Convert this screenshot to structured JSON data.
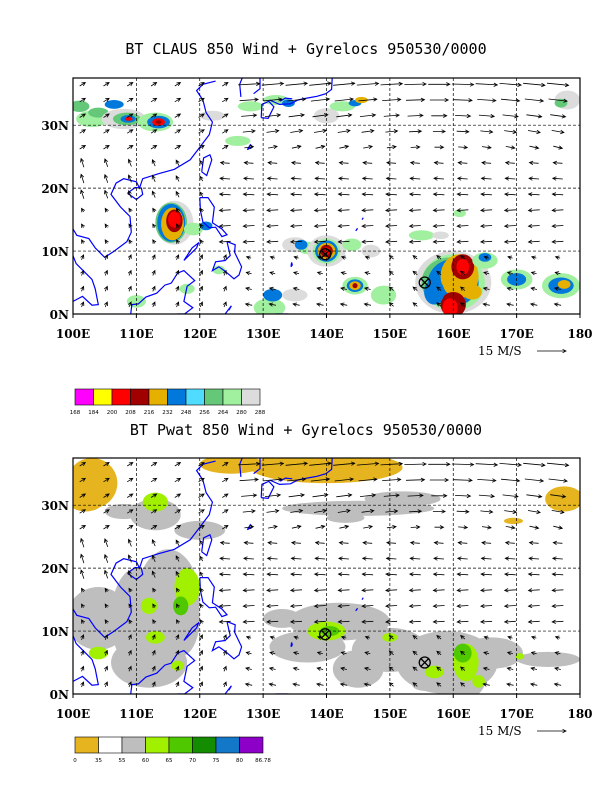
{
  "panels": [
    {
      "id": "claus",
      "title": "BT CLAUS 850 Wind + Gyrelocs 950530/0000",
      "lon_ticks": [
        "100E",
        "110E",
        "120E",
        "130E",
        "140E",
        "150E",
        "160E",
        "170E",
        "180"
      ],
      "lat_ticks": [
        "0N",
        "10N",
        "20N",
        "30N"
      ],
      "ref_vector_label": "15 M/S",
      "colorbar": {
        "colors": [
          "#ff00ff",
          "#ffff00",
          "#ff0000",
          "#a00000",
          "#e6b000",
          "#0078dc",
          "#50dcff",
          "#64c878",
          "#a0f0a0",
          "#dcdcdc"
        ],
        "labels": [
          "168",
          "184",
          "200",
          "208",
          "216",
          "232",
          "248",
          "256",
          "264",
          "280",
          "288"
        ]
      },
      "gyres": [
        {
          "lon": 139.8,
          "lat": 9.5
        },
        {
          "lon": 155.5,
          "lat": 5.0
        }
      ]
    },
    {
      "id": "pwat",
      "title": "BT Pwat 850 Wind + Gyrelocs 950530/0000",
      "lon_ticks": [
        "100E",
        "110E",
        "120E",
        "130E",
        "140E",
        "150E",
        "160E",
        "170E",
        "180"
      ],
      "lat_ticks": [
        "0N",
        "10N",
        "20N",
        "30N"
      ],
      "ref_vector_label": "15 M/S",
      "colorbar": {
        "colors": [
          "#e6b41e",
          "#ffffff",
          "#bebebe",
          "#a0f000",
          "#50c800",
          "#148c00",
          "#1478c8",
          "#8c00c8"
        ],
        "labels": [
          "0",
          "35",
          "55",
          "60",
          "65",
          "70",
          "75",
          "80",
          "86.78"
        ]
      },
      "gyres": [
        {
          "lon": 139.8,
          "lat": 9.5
        },
        {
          "lon": 155.5,
          "lat": 5.0
        }
      ]
    }
  ]
}
